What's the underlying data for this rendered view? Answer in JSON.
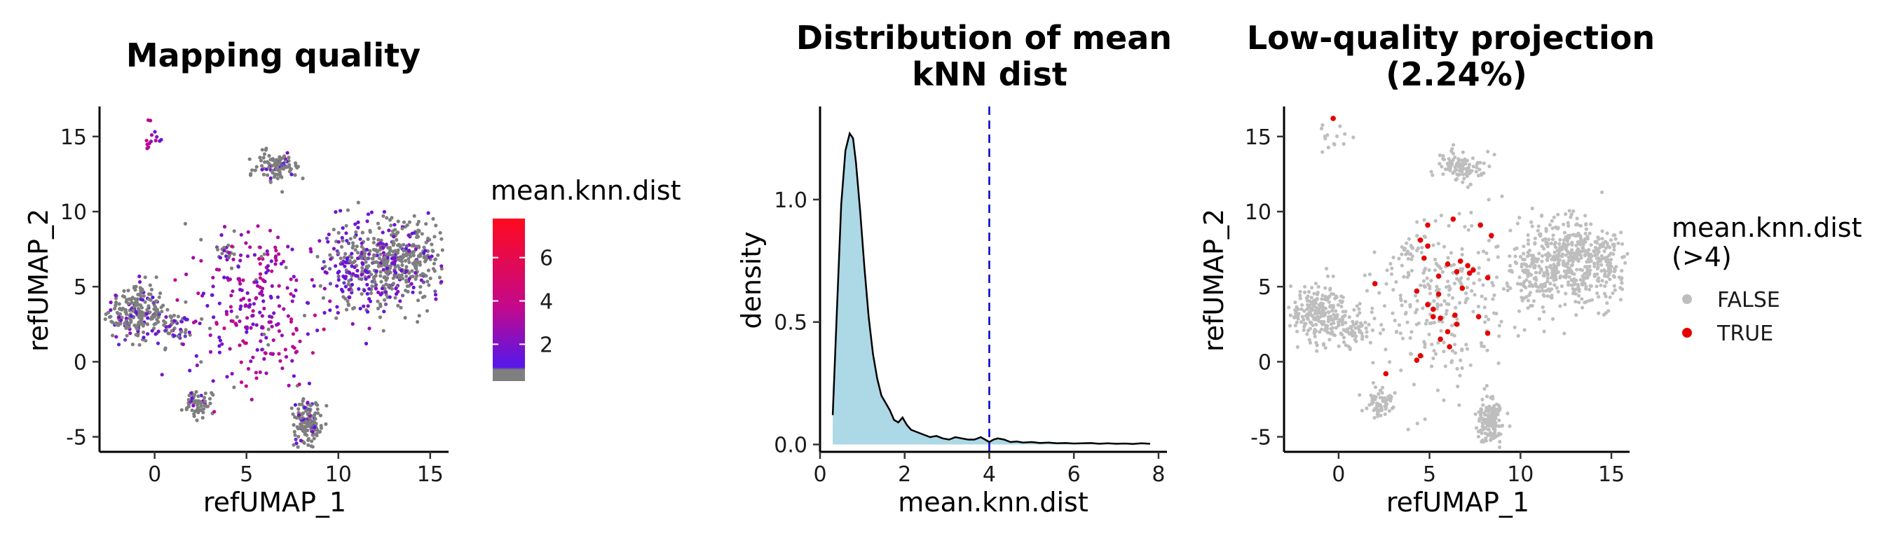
{
  "chart_data": [
    {
      "type": "scatter",
      "title": "Mapping quality",
      "xlabel": "refUMAP_1",
      "ylabel": "refUMAP_2",
      "xlim": [
        -3,
        16
      ],
      "ylim": [
        -6,
        17
      ],
      "xticks": [
        0,
        5,
        10,
        15
      ],
      "yticks": [
        -5,
        0,
        5,
        10,
        15
      ],
      "grid": false,
      "color_variable": "mean.knn.dist",
      "legend": {
        "title": "mean.knn.dist",
        "position": "right",
        "ticks": [
          2,
          4,
          6
        ],
        "range": [
          0.3,
          7.8
        ]
      },
      "colors": {
        "low": "#7f7f7f",
        "mid_low": "#5a16e6",
        "mid": "#c2098c",
        "high": "#ff0a1e"
      },
      "clusters": [
        {
          "cx": -1.0,
          "cy": 3.3,
          "sx": 0.8,
          "sy": 1.0,
          "n": 230,
          "grey_fraction": 0.78
        },
        {
          "cx": 1.0,
          "cy": 2.3,
          "sx": 0.5,
          "sy": 0.6,
          "n": 55,
          "grey_fraction": 0.55
        },
        {
          "cx": 2.3,
          "cy": -2.8,
          "sx": 0.4,
          "sy": 0.4,
          "n": 70,
          "grey_fraction": 0.85
        },
        {
          "cx": 8.3,
          "cy": -4.0,
          "sx": 0.35,
          "sy": 0.8,
          "n": 150,
          "grey_fraction": 0.8
        },
        {
          "cx": 6.7,
          "cy": 13.0,
          "sx": 0.6,
          "sy": 0.5,
          "n": 100,
          "grey_fraction": 0.82
        },
        {
          "cx": 13.3,
          "cy": 6.8,
          "sx": 1.4,
          "sy": 1.4,
          "n": 420,
          "grey_fraction": 0.72
        },
        {
          "cx": 11.0,
          "cy": 6.0,
          "sx": 1.0,
          "sy": 1.6,
          "n": 170,
          "grey_fraction": 0.35
        },
        {
          "cx": 3.9,
          "cy": 7.5,
          "sx": 0.3,
          "sy": 0.3,
          "n": 18,
          "grey_fraction": 0.6
        },
        {
          "cx": -0.2,
          "cy": 15.0,
          "sx": 0.35,
          "sy": 0.7,
          "n": 14,
          "grey_fraction": 0.0
        },
        {
          "cx": 5.5,
          "cy": 4.0,
          "sx": 1.9,
          "sy": 2.8,
          "n": 260,
          "grey_fraction": 0.06
        }
      ]
    },
    {
      "type": "area",
      "title": "Distribution of mean kNN dist",
      "title_lines": [
        "Distribution of mean",
        "kNN dist"
      ],
      "xlabel": "mean.knn.dist",
      "ylabel": "density",
      "xlim": [
        0,
        8.2
      ],
      "ylim": [
        -0.03,
        1.38
      ],
      "xticks": [
        0,
        2,
        4,
        6,
        8
      ],
      "yticks": [
        0.0,
        0.5,
        1.0
      ],
      "ytick_labels": [
        "0.0",
        "0.5",
        "1.0"
      ],
      "grid": false,
      "fill_color": "#add8e6",
      "line_color": "#000000",
      "threshold": 4,
      "threshold_color": "#0000cd",
      "x": [
        0.3,
        0.4,
        0.5,
        0.6,
        0.7,
        0.78,
        0.85,
        0.95,
        1.05,
        1.15,
        1.25,
        1.35,
        1.45,
        1.55,
        1.65,
        1.75,
        1.85,
        1.95,
        2.05,
        2.15,
        2.3,
        2.45,
        2.6,
        2.75,
        2.9,
        3.05,
        3.2,
        3.35,
        3.5,
        3.65,
        3.8,
        3.9,
        4.0,
        4.1,
        4.2,
        4.35,
        4.5,
        4.65,
        4.8,
        5.0,
        5.2,
        5.4,
        5.6,
        5.8,
        6.0,
        6.2,
        6.4,
        6.6,
        6.8,
        7.0,
        7.2,
        7.4,
        7.6,
        7.8
      ],
      "y": [
        0.12,
        0.55,
        0.98,
        1.2,
        1.27,
        1.25,
        1.15,
        0.95,
        0.72,
        0.52,
        0.37,
        0.27,
        0.2,
        0.17,
        0.14,
        0.1,
        0.09,
        0.11,
        0.08,
        0.06,
        0.05,
        0.04,
        0.03,
        0.035,
        0.025,
        0.02,
        0.03,
        0.025,
        0.02,
        0.02,
        0.03,
        0.02,
        0.01,
        0.02,
        0.025,
        0.02,
        0.01,
        0.012,
        0.008,
        0.01,
        0.006,
        0.008,
        0.005,
        0.006,
        0.004,
        0.005,
        0.006,
        0.003,
        0.005,
        0.003,
        0.004,
        0.002,
        0.005,
        0.003
      ]
    },
    {
      "type": "scatter",
      "title": "Low-quality projection (2.24%)",
      "title_lines": [
        "Low-quality projection",
        "(2.24%)"
      ],
      "xlabel": "refUMAP_1",
      "ylabel": "refUMAP_2",
      "xlim": [
        -3,
        16
      ],
      "ylim": [
        -6,
        17
      ],
      "xticks": [
        0,
        5,
        10,
        15
      ],
      "yticks": [
        -5,
        0,
        5,
        10,
        15
      ],
      "grid": false,
      "legend": {
        "title_lines": [
          "mean.knn.dist",
          "(>4)"
        ],
        "position": "right",
        "entries": [
          {
            "label": "FALSE",
            "color": "#bebebe"
          },
          {
            "label": "TRUE",
            "color": "#e60000"
          }
        ]
      },
      "true_points": [
        [
          -0.3,
          16.2
        ],
        [
          4.9,
          9.1
        ],
        [
          6.3,
          9.5
        ],
        [
          7.8,
          9.1
        ],
        [
          8.4,
          8.4
        ],
        [
          4.5,
          8.1
        ],
        [
          4.9,
          7.7
        ],
        [
          4.7,
          6.9
        ],
        [
          6.0,
          6.5
        ],
        [
          6.7,
          6.7
        ],
        [
          7.1,
          6.4
        ],
        [
          7.4,
          6.1
        ],
        [
          6.5,
          6.0
        ],
        [
          7.2,
          5.9
        ],
        [
          8.2,
          5.6
        ],
        [
          5.5,
          5.7
        ],
        [
          5.5,
          4.5
        ],
        [
          6.8,
          4.9
        ],
        [
          4.9,
          3.8
        ],
        [
          4.3,
          4.7
        ],
        [
          5.2,
          3.5
        ],
        [
          5.6,
          2.9
        ],
        [
          6.4,
          3.1
        ],
        [
          6.0,
          2.0
        ],
        [
          6.5,
          2.5
        ],
        [
          5.6,
          1.5
        ],
        [
          7.7,
          3.0
        ],
        [
          8.2,
          1.9
        ],
        [
          4.5,
          0.4
        ],
        [
          4.3,
          0.1
        ],
        [
          2.0,
          5.2
        ],
        [
          2.6,
          -0.8
        ],
        [
          6.1,
          1.0
        ],
        [
          5.2,
          3.0
        ]
      ],
      "clusters": [
        {
          "cx": -1.0,
          "cy": 3.3,
          "sx": 0.8,
          "sy": 1.0,
          "n": 230
        },
        {
          "cx": 1.0,
          "cy": 2.3,
          "sx": 0.5,
          "sy": 0.6,
          "n": 55
        },
        {
          "cx": 2.3,
          "cy": -2.8,
          "sx": 0.4,
          "sy": 0.4,
          "n": 70
        },
        {
          "cx": 8.3,
          "cy": -4.0,
          "sx": 0.35,
          "sy": 0.8,
          "n": 150
        },
        {
          "cx": 6.7,
          "cy": 13.0,
          "sx": 0.6,
          "sy": 0.5,
          "n": 100
        },
        {
          "cx": 13.3,
          "cy": 6.8,
          "sx": 1.4,
          "sy": 1.4,
          "n": 420
        },
        {
          "cx": 11.0,
          "cy": 6.0,
          "sx": 1.0,
          "sy": 1.6,
          "n": 170
        },
        {
          "cx": 3.9,
          "cy": 7.5,
          "sx": 0.3,
          "sy": 0.3,
          "n": 18
        },
        {
          "cx": -0.2,
          "cy": 15.0,
          "sx": 0.35,
          "sy": 0.7,
          "n": 14
        },
        {
          "cx": 5.5,
          "cy": 4.0,
          "sx": 1.9,
          "sy": 2.8,
          "n": 260
        }
      ]
    }
  ]
}
